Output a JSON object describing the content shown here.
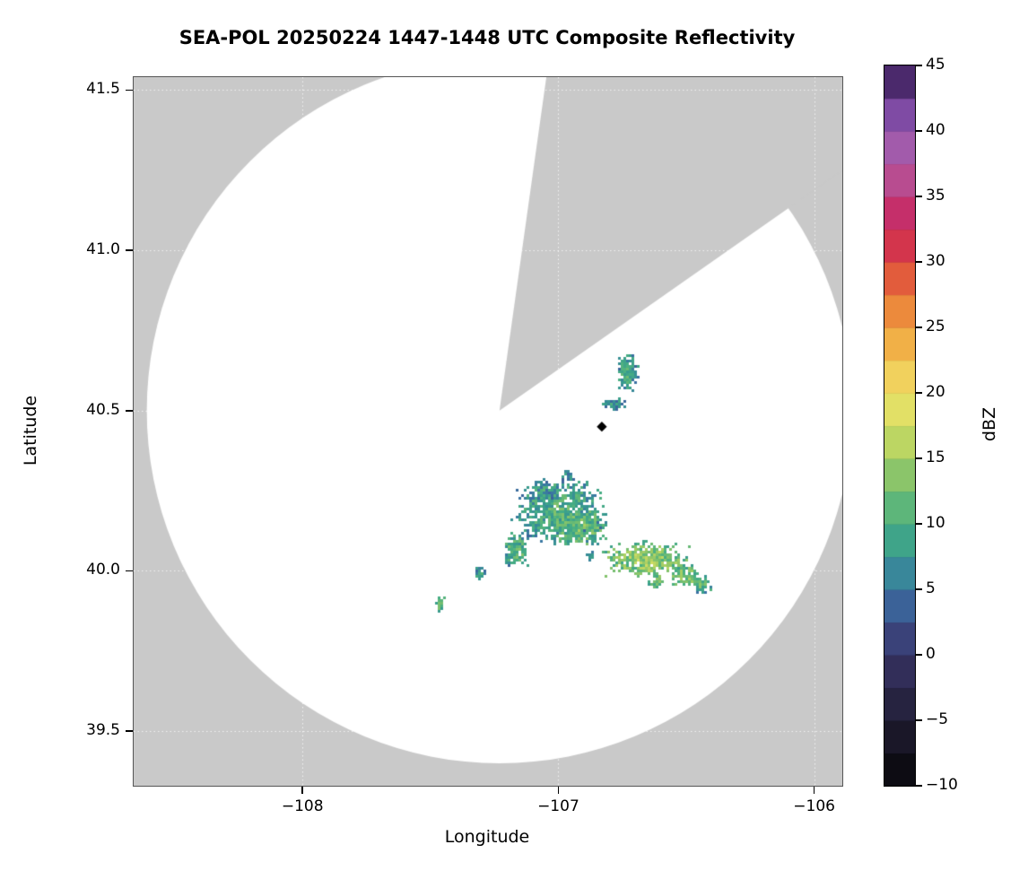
{
  "title": "SEA-POL 20250224 1447-1448 UTC Composite Reflectivity",
  "axes": {
    "xlabel": "Longitude",
    "ylabel": "Latitude",
    "x_ticks": [
      {
        "value": -108,
        "label": "−108"
      },
      {
        "value": -107,
        "label": "−107"
      },
      {
        "value": -106,
        "label": "−106"
      }
    ],
    "y_ticks": [
      {
        "value": 41.5,
        "label": "41.5"
      },
      {
        "value": 41.0,
        "label": "41.0"
      },
      {
        "value": 40.5,
        "label": "40.5"
      },
      {
        "value": 40.0,
        "label": "40.0"
      },
      {
        "value": 39.5,
        "label": "39.5"
      }
    ]
  },
  "colorbar": {
    "label": "dBZ",
    "min": -10,
    "max": 45,
    "segment_step": 2.5,
    "ticks": [
      {
        "value": 45,
        "label": "45"
      },
      {
        "value": 40,
        "label": "40"
      },
      {
        "value": 35,
        "label": "35"
      },
      {
        "value": 30,
        "label": "30"
      },
      {
        "value": 25,
        "label": "25"
      },
      {
        "value": 20,
        "label": "20"
      },
      {
        "value": 15,
        "label": "15"
      },
      {
        "value": 10,
        "label": "10"
      },
      {
        "value": 5,
        "label": "5"
      },
      {
        "value": 0,
        "label": "0"
      },
      {
        "value": -5,
        "label": "−5"
      },
      {
        "value": -10,
        "label": "−10"
      }
    ],
    "color_stops": [
      [
        -10,
        "#060608"
      ],
      [
        -5,
        "#201d33"
      ],
      [
        0,
        "#383466"
      ],
      [
        2.5,
        "#3c4f8c"
      ],
      [
        5,
        "#3a74a4"
      ],
      [
        7.5,
        "#37998f"
      ],
      [
        10,
        "#47ae83"
      ],
      [
        12.5,
        "#72bd70"
      ],
      [
        15,
        "#a3cd63"
      ],
      [
        17.5,
        "#d5de62"
      ],
      [
        20,
        "#efe26a"
      ],
      [
        22.5,
        "#f2c04f"
      ],
      [
        25,
        "#efa03f"
      ],
      [
        27.5,
        "#e87338"
      ],
      [
        30,
        "#dc443f"
      ],
      [
        32.5,
        "#ca2658"
      ],
      [
        35,
        "#c0387b"
      ],
      [
        37.5,
        "#b05fa4"
      ],
      [
        40,
        "#9457b1"
      ],
      [
        42.5,
        "#6a3e97"
      ],
      [
        45,
        "#2b1340"
      ]
    ]
  },
  "chart_data": {
    "type": "heatmap",
    "description": "Radar PPI composite reflectivity on longitude/latitude axes; white circular scan area with blocked azimuth wedge over gray background; scattered light precipitation echoes 5-18 dBZ",
    "units": "dBZ",
    "bounds": {
      "lon_min": -108.66,
      "lon_max": -105.89,
      "lat_min": 39.33,
      "lat_max": 41.54
    },
    "colors": {
      "outside_scan": "#c9c9c9",
      "scan_area": "#ffffff",
      "gridline": "rgba(255,255,255,0.75)"
    },
    "radar": {
      "center_lon": -107.23,
      "center_lat": 40.5,
      "range_deg_lat": 1.1,
      "blocked_sector_azimuth_deg": [
        8,
        55
      ]
    },
    "site_marker": {
      "lon": -106.83,
      "lat": 40.45,
      "shape": "diamond",
      "color": "#000000"
    },
    "echo_clusters": [
      {
        "lon": -107.0,
        "lat": 40.19,
        "w": 0.3,
        "h": 0.17,
        "dbz": 11,
        "n": 650
      },
      {
        "lon": -106.93,
        "lat": 40.14,
        "w": 0.2,
        "h": 0.1,
        "dbz": 13,
        "n": 280
      },
      {
        "lon": -107.06,
        "lat": 40.25,
        "w": 0.1,
        "h": 0.07,
        "dbz": 9,
        "n": 90
      },
      {
        "lon": -106.66,
        "lat": 40.04,
        "w": 0.28,
        "h": 0.09,
        "dbz": 15,
        "n": 380
      },
      {
        "lon": -106.51,
        "lat": 39.99,
        "w": 0.1,
        "h": 0.06,
        "dbz": 14,
        "n": 90
      },
      {
        "lon": -107.17,
        "lat": 40.07,
        "w": 0.08,
        "h": 0.09,
        "dbz": 12,
        "n": 130
      },
      {
        "lon": -107.31,
        "lat": 40.0,
        "w": 0.035,
        "h": 0.035,
        "dbz": 10,
        "n": 22
      },
      {
        "lon": -107.47,
        "lat": 39.9,
        "w": 0.035,
        "h": 0.04,
        "dbz": 13,
        "n": 22
      },
      {
        "lon": -106.44,
        "lat": 39.96,
        "w": 0.06,
        "h": 0.045,
        "dbz": 12,
        "n": 45
      },
      {
        "lon": -106.73,
        "lat": 40.62,
        "w": 0.075,
        "h": 0.1,
        "dbz": 10,
        "n": 150
      },
      {
        "lon": -106.79,
        "lat": 40.52,
        "w": 0.08,
        "h": 0.035,
        "dbz": 9,
        "n": 55
      },
      {
        "lon": -106.88,
        "lat": 40.05,
        "w": 0.03,
        "h": 0.03,
        "dbz": 9,
        "n": 14
      },
      {
        "lon": -106.97,
        "lat": 40.3,
        "w": 0.04,
        "h": 0.03,
        "dbz": 8,
        "n": 16
      },
      {
        "lon": -106.62,
        "lat": 39.97,
        "w": 0.05,
        "h": 0.035,
        "dbz": 13,
        "n": 30
      }
    ]
  }
}
